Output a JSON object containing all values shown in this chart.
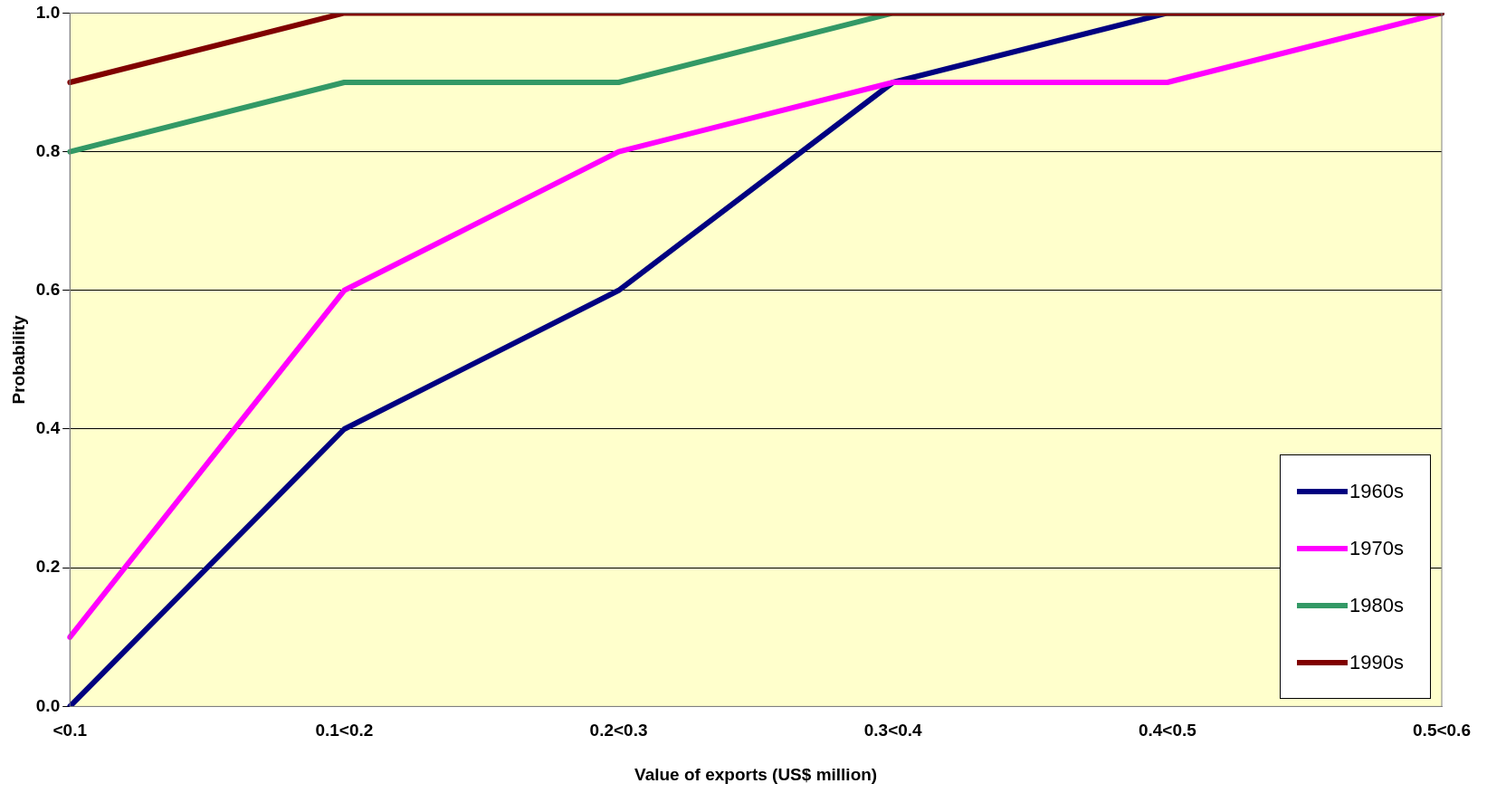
{
  "chart_data": {
    "type": "line",
    "xlabel": "Value of exports (US$ million)",
    "ylabel": "Probability",
    "categories": [
      "<0.1",
      "0.1<0.2",
      "0.2<0.3",
      "0.3<0.4",
      "0.4<0.5",
      "0.5<0.6"
    ],
    "series": [
      {
        "name": "1960s",
        "color": "#000080",
        "values": [
          0,
          0.4,
          0.6,
          0.9,
          1.0,
          1.0
        ]
      },
      {
        "name": "1970s",
        "color": "#ff00ff",
        "values": [
          0.1,
          0.6,
          0.8,
          0.9,
          0.9,
          1.0
        ]
      },
      {
        "name": "1980s",
        "color": "#339966",
        "values": [
          0.8,
          0.9,
          0.9,
          1.0,
          1.0,
          1.0
        ]
      },
      {
        "name": "1990s",
        "color": "#800000",
        "values": [
          0.9,
          1.0,
          1.0,
          1.0,
          1.0,
          1.0
        ]
      }
    ],
    "ylim": [
      0,
      1
    ],
    "yticks": [
      {
        "value": 0,
        "label": "0.0"
      },
      {
        "value": 0.2,
        "label": "0.2"
      },
      {
        "value": 0.4,
        "label": "0.4"
      },
      {
        "value": 0.6,
        "label": "0.6"
      },
      {
        "value": 0.8,
        "label": "0.8"
      },
      {
        "value": 1,
        "label": "1.0"
      }
    ],
    "grid": "y",
    "legend": "bottom right",
    "marker": "none",
    "line_style": "solid"
  }
}
